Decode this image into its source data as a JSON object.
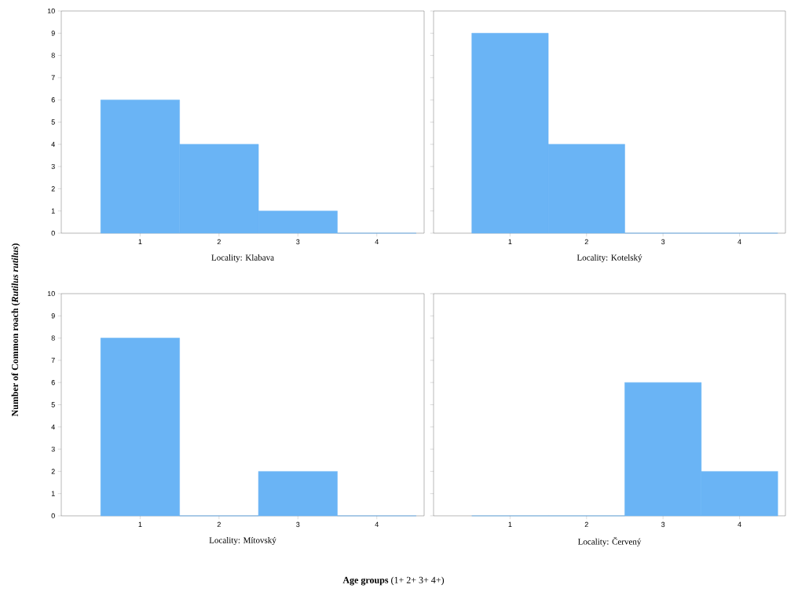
{
  "chart_data": [
    {
      "type": "bar",
      "categories": [
        "1",
        "2",
        "3",
        "4"
      ],
      "values": [
        6,
        4,
        1,
        0
      ],
      "color": "#6ab4f5",
      "ylim": [
        0,
        10
      ],
      "yticks": [
        0,
        1,
        2,
        3,
        4,
        5,
        6,
        7,
        8,
        9,
        10
      ],
      "xlabel": "Locality: Klabava",
      "ylabel": "**Number of Common roach (*Rutilus rutilus*)**"
    },
    {
      "type": "bar",
      "categories": [
        "1",
        "2",
        "3",
        "4"
      ],
      "values": [
        9,
        4,
        0,
        0
      ],
      "color": "#6ab4f5",
      "ylim": [
        0,
        10
      ],
      "yticks": [
        0,
        1,
        2,
        3,
        4,
        5,
        6,
        7,
        8,
        9,
        10
      ],
      "xlabel": "Locality: Kotelský",
      "tick_labels": "x"
    },
    {
      "type": "bar",
      "categories": [
        "1",
        "2",
        "3",
        "4"
      ],
      "values": [
        8,
        0,
        2,
        0
      ],
      "color": "#6ab4f5",
      "ylim": [
        0,
        10
      ],
      "yticks": [
        0,
        1,
        2,
        3,
        4,
        5,
        6,
        7,
        8,
        9,
        10
      ],
      "xlabel": "Locality: Mítovský",
      "annotations": [
        "**Age groups** (1+ 2+ 3+ 4+)"
      ]
    },
    {
      "type": "bar",
      "categories": [
        "1",
        "2",
        "3",
        "4"
      ],
      "values": [
        0,
        0,
        6,
        2
      ],
      "color": "#6ab4f5",
      "ylim": [
        0,
        10
      ],
      "yticks": [
        0,
        1,
        2,
        3,
        4,
        5,
        6,
        7,
        8,
        9,
        10
      ],
      "xlabel": "Locality: Červený",
      "tick_labels": "x"
    }
  ]
}
